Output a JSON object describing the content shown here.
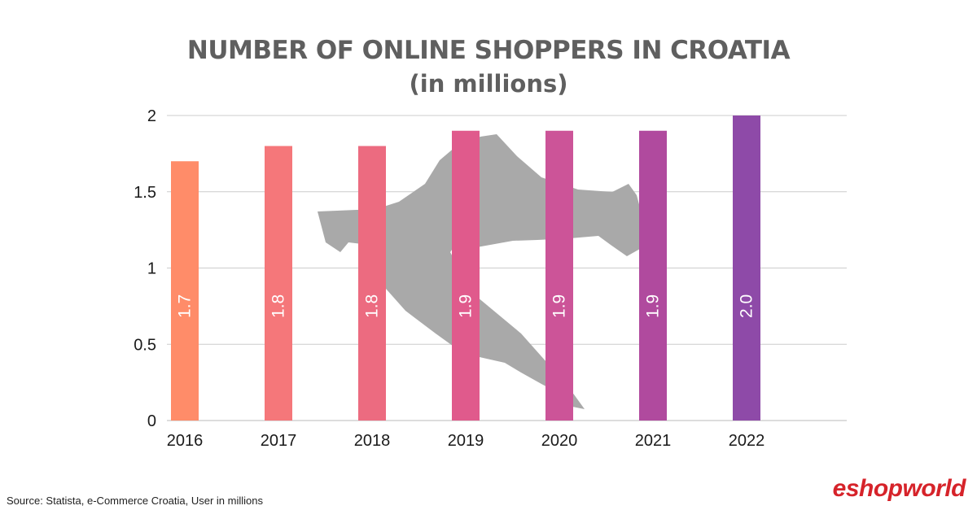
{
  "header": {
    "title": "NUMBER OF ONLINE SHOPPERS IN CROATIA",
    "subtitle": "(in millions)"
  },
  "footer": {
    "source": "Source: Statista, e-Commerce Croatia, User in millions",
    "logo_text": "eshopworld"
  },
  "colors": {
    "gridline": "#cccccc",
    "axis": "#bbbbbb",
    "text": "#1a1a1a",
    "map_silhouette": "#a9a9a9",
    "logo": "#d6232a",
    "bars": [
      "#ff8c69",
      "#f5777a",
      "#ec6b80",
      "#e05a8c",
      "#cc5498",
      "#b04a9e",
      "#8e4aa8"
    ]
  },
  "chart_data": {
    "type": "bar",
    "title": "NUMBER OF ONLINE SHOPPERS IN CROATIA",
    "subtitle": "(in millions)",
    "categories": [
      "2016",
      "2017",
      "2018",
      "2019",
      "2020",
      "2021",
      "2022"
    ],
    "values": [
      1.7,
      1.8,
      1.8,
      1.9,
      1.9,
      1.9,
      2.0
    ],
    "data_labels": [
      "1.7",
      "1.8",
      "1.8",
      "1.9",
      "1.9",
      "1.9",
      "2.0"
    ],
    "ylim": [
      0,
      2
    ],
    "yticks": [
      "0",
      "0.5",
      "1",
      "1.5",
      "2"
    ],
    "ytick_values": [
      0,
      0.5,
      1,
      1.5,
      2
    ],
    "grid": true,
    "background_image": "croatia-map-silhouette"
  }
}
